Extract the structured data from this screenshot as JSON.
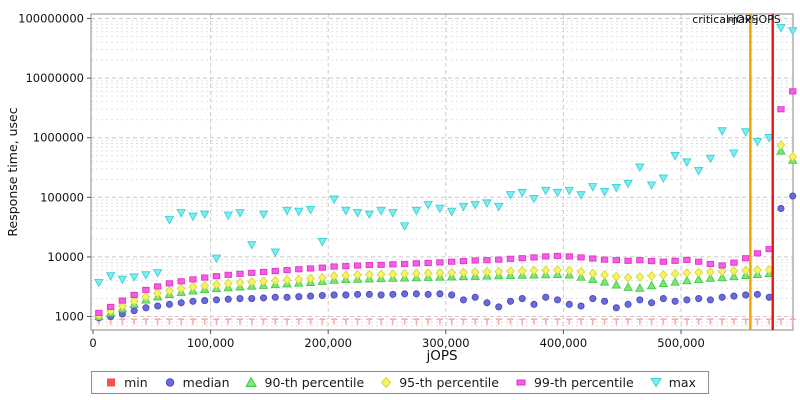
{
  "chart_data": {
    "type": "scatter",
    "title": "",
    "xlabel": "jOPS",
    "ylabel": "Response time, usec",
    "y_scale": "log",
    "grid": true,
    "legend_position": "bottom",
    "xlim": [
      0,
      595000
    ],
    "ylim": [
      600,
      120000000
    ],
    "x_ticks": [
      {
        "v": 0,
        "label": "0"
      },
      {
        "v": 100000,
        "label": "100,000"
      },
      {
        "v": 200000,
        "label": "200,000"
      },
      {
        "v": 300000,
        "label": "300,000"
      },
      {
        "v": 400000,
        "label": "400,000"
      },
      {
        "v": 500000,
        "label": "500,000"
      }
    ],
    "y_ticks": [
      {
        "v": 1000,
        "label": "1000"
      },
      {
        "v": 10000,
        "label": "10000"
      },
      {
        "v": 100000,
        "label": "100000"
      },
      {
        "v": 1000000,
        "label": "1000000"
      },
      {
        "v": 10000000,
        "label": "10000000"
      },
      {
        "v": 100000000,
        "label": "100000000"
      }
    ],
    "annotations": [
      {
        "label": "critical-jOPS",
        "x": 559000,
        "color": "#eda400"
      },
      {
        "label": "max-jOPS",
        "x": 578000,
        "color": "#f01212"
      }
    ],
    "x": [
      5000,
      15000,
      25000,
      35000,
      45000,
      55000,
      65000,
      75000,
      85000,
      95000,
      105000,
      115000,
      125000,
      135000,
      145000,
      155000,
      165000,
      175000,
      185000,
      195000,
      205000,
      215000,
      225000,
      235000,
      245000,
      255000,
      265000,
      275000,
      285000,
      295000,
      305000,
      315000,
      325000,
      335000,
      345000,
      355000,
      365000,
      375000,
      385000,
      395000,
      405000,
      415000,
      425000,
      435000,
      445000,
      455000,
      465000,
      475000,
      485000,
      495000,
      505000,
      515000,
      525000,
      535000,
      545000,
      555000,
      565000,
      575000,
      585000,
      595000
    ],
    "series": [
      {
        "name": "min",
        "marker": "tee",
        "color": "#ffa0a0",
        "edge": "#ff8a8a",
        "legend_color": "#f4524a",
        "values": [
          900,
          900,
          900,
          900,
          900,
          900,
          900,
          900,
          900,
          900,
          900,
          900,
          900,
          900,
          900,
          900,
          900,
          900,
          900,
          900,
          900,
          900,
          900,
          900,
          900,
          900,
          900,
          900,
          900,
          900,
          900,
          900,
          900,
          900,
          900,
          900,
          900,
          900,
          900,
          900,
          900,
          900,
          900,
          900,
          900,
          900,
          900,
          900,
          900,
          900,
          900,
          900,
          900,
          900,
          900,
          900,
          900,
          900,
          900,
          900
        ]
      },
      {
        "name": "median",
        "marker": "circle",
        "color": "#6a6ade",
        "edge": "#4a4ac0",
        "values": [
          950,
          1000,
          1100,
          1250,
          1400,
          1500,
          1600,
          1700,
          1800,
          1850,
          1900,
          1950,
          2000,
          2000,
          2050,
          2100,
          2100,
          2150,
          2200,
          2250,
          2300,
          2300,
          2350,
          2350,
          2300,
          2350,
          2400,
          2400,
          2350,
          2400,
          2300,
          1900,
          2100,
          1700,
          1450,
          1800,
          2000,
          1600,
          2100,
          1900,
          1600,
          1500,
          2000,
          1800,
          1400,
          1600,
          1900,
          1700,
          2000,
          1800,
          1900,
          2000,
          1900,
          2100,
          2200,
          2300,
          2350,
          2100,
          65000,
          105000
        ]
      },
      {
        "name": "90-th percentile",
        "marker": "triangle-up",
        "color": "#79e879",
        "edge": "#44c944",
        "values": [
          1000,
          1150,
          1350,
          1600,
          1900,
          2150,
          2350,
          2550,
          2700,
          2850,
          2950,
          3050,
          3150,
          3250,
          3350,
          3450,
          3550,
          3650,
          3750,
          3900,
          4100,
          4200,
          4250,
          4300,
          4350,
          4400,
          4450,
          4500,
          4550,
          4600,
          4650,
          4700,
          4750,
          4800,
          4850,
          4900,
          4950,
          5000,
          5050,
          5100,
          5000,
          4600,
          4200,
          3800,
          3400,
          3100,
          3000,
          3300,
          3600,
          3800,
          4000,
          4200,
          4400,
          4500,
          4700,
          4900,
          5100,
          5300,
          600000,
          420000
        ]
      },
      {
        "name": "95-th percentile",
        "marker": "diamond",
        "color": "#f4f465",
        "edge": "#d8d838",
        "values": [
          1050,
          1250,
          1500,
          1800,
          2150,
          2450,
          2700,
          2950,
          3150,
          3300,
          3450,
          3600,
          3700,
          3800,
          3900,
          4000,
          4100,
          4200,
          4350,
          4500,
          4800,
          4900,
          5000,
          5050,
          5100,
          5150,
          5200,
          5300,
          5350,
          5400,
          5450,
          5500,
          5550,
          5600,
          5700,
          5750,
          5800,
          5900,
          5950,
          6000,
          5900,
          5600,
          5300,
          5000,
          4700,
          4500,
          4600,
          4800,
          5000,
          5200,
          5400,
          5500,
          5600,
          5700,
          5800,
          5900,
          6000,
          6100,
          750000,
          480000
        ]
      },
      {
        "name": "99-th percentile",
        "marker": "square",
        "color": "#f85ce4",
        "edge": "#de35c8",
        "values": [
          1150,
          1450,
          1850,
          2300,
          2800,
          3200,
          3600,
          3900,
          4200,
          4500,
          4750,
          5000,
          5200,
          5400,
          5600,
          5800,
          6000,
          6200,
          6400,
          6600,
          6900,
          7000,
          7150,
          7300,
          7350,
          7500,
          7600,
          7800,
          7900,
          8100,
          8300,
          8500,
          8700,
          8800,
          9000,
          9300,
          9500,
          9800,
          10200,
          10400,
          10200,
          9800,
          9400,
          9000,
          8800,
          8600,
          8800,
          8500,
          8300,
          8600,
          8900,
          8300,
          7600,
          7200,
          8000,
          9500,
          11500,
          13500,
          3000000,
          6000000
        ]
      },
      {
        "name": "max",
        "marker": "triangle-down",
        "color": "#7deeee",
        "edge": "#3fd0da",
        "values": [
          3700,
          4800,
          4200,
          4600,
          5000,
          5400,
          42000,
          55000,
          48000,
          52000,
          9500,
          50000,
          55000,
          16000,
          52000,
          12000,
          60000,
          58000,
          62000,
          18000,
          93000,
          60000,
          55000,
          52000,
          60000,
          55000,
          33000,
          60000,
          75000,
          65000,
          58000,
          70000,
          75000,
          80000,
          70000,
          110000,
          120000,
          95000,
          130000,
          120000,
          130000,
          110000,
          150000,
          125000,
          145000,
          170000,
          320000,
          160000,
          210000,
          500000,
          390000,
          280000,
          450000,
          1300000,
          550000,
          1250000,
          860000,
          1000000,
          70000000,
          62000000
        ]
      }
    ]
  }
}
